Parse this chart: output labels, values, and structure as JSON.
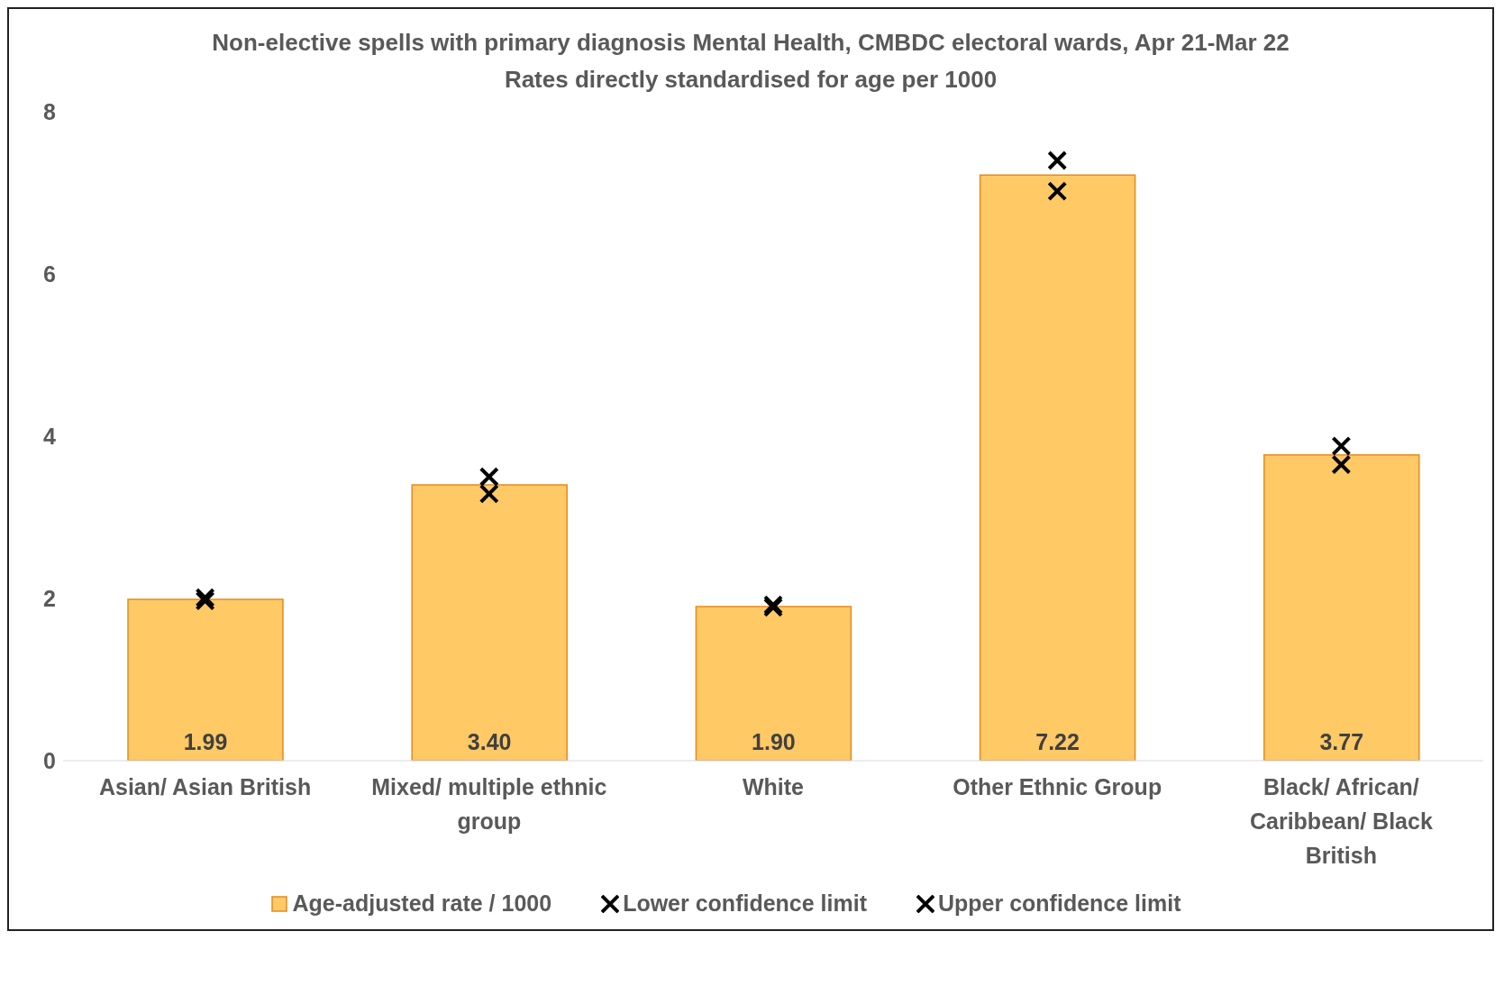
{
  "chart_data": {
    "type": "bar",
    "title": "Non-elective spells with primary diagnosis Mental Health, CMBDC electoral wards, Apr 21-Mar 22",
    "subtitle": "Rates directly standardised for age per 1000",
    "categories": [
      "Asian/ Asian British",
      "Mixed/ multiple ethnic group",
      "White",
      "Other Ethnic Group",
      "Black/ African/ Caribbean/ Black British"
    ],
    "series": [
      {
        "name": "Age-adjusted rate / 1000",
        "color": "#ffc966",
        "values": [
          1.99,
          3.4,
          1.9,
          7.22,
          3.77
        ],
        "value_labels": [
          "1.99",
          "3.40",
          "1.90",
          "7.22",
          "3.77"
        ]
      },
      {
        "name": "Lower confidence limit",
        "type": "scatter",
        "color": "#000000",
        "marker": "cross",
        "x": [
          "Asian/ Asian British",
          "Mixed/ multiple ethnic group",
          "White",
          "Other Ethnic Group",
          "Black/ African/ Caribbean/ Black British"
        ],
        "values": [
          1.97,
          3.29,
          1.89,
          7.02,
          3.65
        ]
      },
      {
        "name": "Upper confidence limit",
        "type": "scatter",
        "color": "#000000",
        "marker": "cross",
        "x": [
          "Asian/ Asian British",
          "Mixed/ multiple ethnic group",
          "White",
          "Other Ethnic Group",
          "Black/ African/ Caribbean/ Black British"
        ],
        "values": [
          2.01,
          3.5,
          1.92,
          7.4,
          3.88
        ]
      }
    ],
    "ylim": [
      0,
      8
    ],
    "yticks": [
      0,
      2,
      4,
      6,
      8
    ],
    "legend": "bottom"
  }
}
